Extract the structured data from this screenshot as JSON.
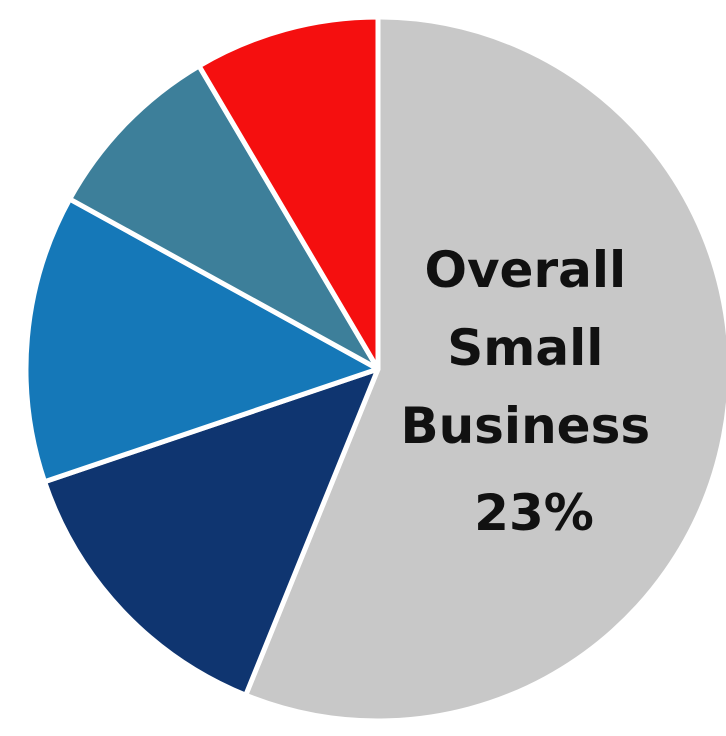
{
  "chart_data": {
    "type": "pie",
    "slices": [
      {
        "value": 59.5,
        "color": "#c8c8c8"
      },
      {
        "value": 14.5,
        "color": "#0f3570"
      },
      {
        "value": 14.0,
        "color": "#1578b8"
      },
      {
        "value": 9.0,
        "color": "#3d7f9a"
      },
      {
        "value": 9.0,
        "color": "#f50f0f"
      }
    ],
    "label_lines": [
      "Overall",
      "Small",
      "Business",
      "23%"
    ],
    "start_angle_deg": 0,
    "direction": "clockwise"
  }
}
